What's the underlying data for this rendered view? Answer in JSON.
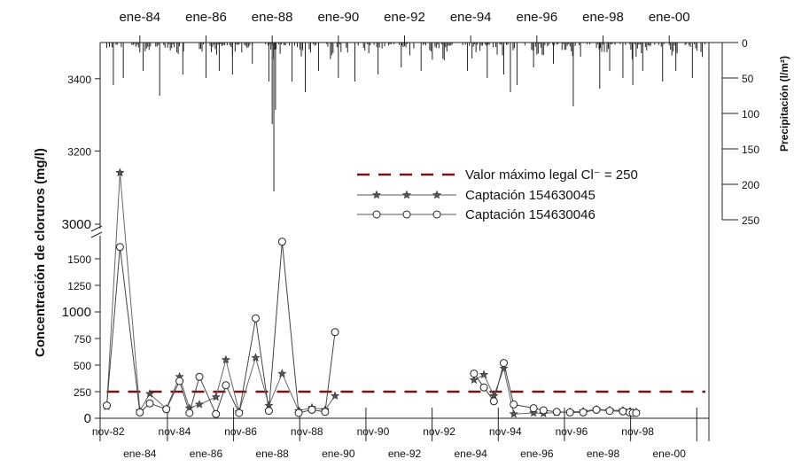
{
  "chart_data": {
    "type": "line",
    "y_axis": {
      "label": "Concentración de cloruros (mg/l)",
      "lower_ticks": [
        "0",
        "250",
        "500",
        "750",
        "1000",
        "1250",
        "1500"
      ],
      "break_tick": "3000",
      "upper_ticks": [
        "3200",
        "3400"
      ],
      "lower_range": [
        0,
        1600
      ],
      "upper_range": [
        3000,
        3500
      ]
    },
    "precip_axis": {
      "label": "Precipitación (l/m²)",
      "ticks": [
        "0",
        "50",
        "100",
        "150",
        "200",
        "250"
      ],
      "range": [
        0,
        250
      ]
    },
    "top_axis_labels": [
      "ene-84",
      "ene-86",
      "ene-88",
      "ene-90",
      "ene-92",
      "ene-94",
      "ene-96",
      "ene-98",
      "ene-00"
    ],
    "bottom_axis_labels_upper": [
      "nov-82",
      "nov-84",
      "nov-86",
      "nov-88",
      "nov-90",
      "nov-92",
      "nov-94",
      "nov-96",
      "nov-98"
    ],
    "bottom_axis_labels_lower": [
      "ene-84",
      "ene-86",
      "ene-88",
      "ene-90",
      "ene-92",
      "ene-94",
      "ene-96",
      "ene-98",
      "ene-00"
    ],
    "x_range_years": [
      1982.8,
      2001.2
    ],
    "reference_line": {
      "label": "Valor máximo legal Cl⁻ = 250",
      "value": 250,
      "color": "#7a1212"
    },
    "series": [
      {
        "name": "Captación 154630045",
        "marker": "star",
        "segments": [
          [
            [
              1983.0,
              110
            ],
            [
              1983.4,
              3140
            ],
            [
              1984.0,
              70
            ],
            [
              1984.3,
              230
            ],
            [
              1984.8,
              90
            ],
            [
              1985.2,
              390
            ],
            [
              1985.5,
              95
            ],
            [
              1985.8,
              130
            ],
            [
              1986.3,
              200
            ],
            [
              1986.6,
              550
            ],
            [
              1987.0,
              60
            ],
            [
              1987.5,
              570
            ],
            [
              1987.9,
              120
            ],
            [
              1988.3,
              420
            ],
            [
              1988.8,
              70
            ],
            [
              1989.2,
              100
            ],
            [
              1989.6,
              80
            ],
            [
              1989.9,
              210
            ]
          ],
          [
            [
              1994.1,
              360
            ],
            [
              1994.4,
              410
            ],
            [
              1994.7,
              210
            ],
            [
              1995.0,
              470
            ],
            [
              1995.3,
              40
            ],
            [
              1995.9,
              50
            ],
            [
              1996.2,
              45
            ],
            [
              1996.6,
              55
            ],
            [
              1997.0,
              60
            ],
            [
              1997.4,
              65
            ],
            [
              1997.8,
              85
            ],
            [
              1998.2,
              75
            ],
            [
              1998.6,
              75
            ],
            [
              1998.8,
              60
            ],
            [
              1998.9,
              55
            ],
            [
              1999.0,
              60
            ]
          ]
        ]
      },
      {
        "name": "Captación 154630046",
        "marker": "circle",
        "segments": [
          [
            [
              1983.0,
              120
            ],
            [
              1983.4,
              1610
            ],
            [
              1984.0,
              55
            ],
            [
              1984.3,
              140
            ],
            [
              1984.8,
              85
            ],
            [
              1985.2,
              350
            ],
            [
              1985.5,
              50
            ],
            [
              1985.8,
              390
            ],
            [
              1986.3,
              40
            ],
            [
              1986.6,
              310
            ],
            [
              1987.0,
              50
            ],
            [
              1987.5,
              940
            ],
            [
              1987.9,
              70
            ],
            [
              1988.3,
              1660
            ],
            [
              1988.8,
              50
            ],
            [
              1989.2,
              80
            ],
            [
              1989.6,
              60
            ],
            [
              1989.9,
              810
            ]
          ],
          [
            [
              1994.1,
              420
            ],
            [
              1994.4,
              290
            ],
            [
              1994.7,
              160
            ],
            [
              1995.0,
              520
            ],
            [
              1995.3,
              130
            ],
            [
              1995.9,
              95
            ],
            [
              1996.2,
              75
            ],
            [
              1996.6,
              60
            ],
            [
              1997.0,
              55
            ],
            [
              1997.4,
              55
            ],
            [
              1997.8,
              80
            ],
            [
              1998.2,
              70
            ],
            [
              1998.6,
              65
            ],
            [
              1998.8,
              55
            ],
            [
              1998.9,
              50
            ],
            [
              1999.0,
              50
            ]
          ]
        ]
      }
    ],
    "precipitation_peaks": [
      [
        1983.2,
        60
      ],
      [
        1983.5,
        50
      ],
      [
        1984.1,
        40
      ],
      [
        1984.6,
        75
      ],
      [
        1985.3,
        45
      ],
      [
        1986.0,
        50
      ],
      [
        1986.4,
        40
      ],
      [
        1986.8,
        45
      ],
      [
        1987.4,
        30
      ],
      [
        1987.9,
        55
      ],
      [
        1988.0,
        115
      ],
      [
        1988.05,
        210
      ],
      [
        1988.1,
        95
      ],
      [
        1988.6,
        55
      ],
      [
        1989.0,
        70
      ],
      [
        1989.4,
        40
      ],
      [
        1990.0,
        50
      ],
      [
        1990.5,
        55
      ],
      [
        1991.2,
        45
      ],
      [
        1991.9,
        35
      ],
      [
        1992.5,
        40
      ],
      [
        1993.2,
        25
      ],
      [
        1993.9,
        40
      ],
      [
        1994.5,
        50
      ],
      [
        1995.0,
        45
      ],
      [
        1995.2,
        70
      ],
      [
        1995.4,
        60
      ],
      [
        1995.9,
        35
      ],
      [
        1996.5,
        30
      ],
      [
        1997.1,
        90
      ],
      [
        1997.9,
        65
      ],
      [
        1998.2,
        40
      ],
      [
        1998.6,
        50
      ],
      [
        1998.9,
        60
      ],
      [
        1999.2,
        40
      ],
      [
        1999.8,
        55
      ],
      [
        2000.2,
        40
      ],
      [
        2000.7,
        50
      ]
    ]
  }
}
